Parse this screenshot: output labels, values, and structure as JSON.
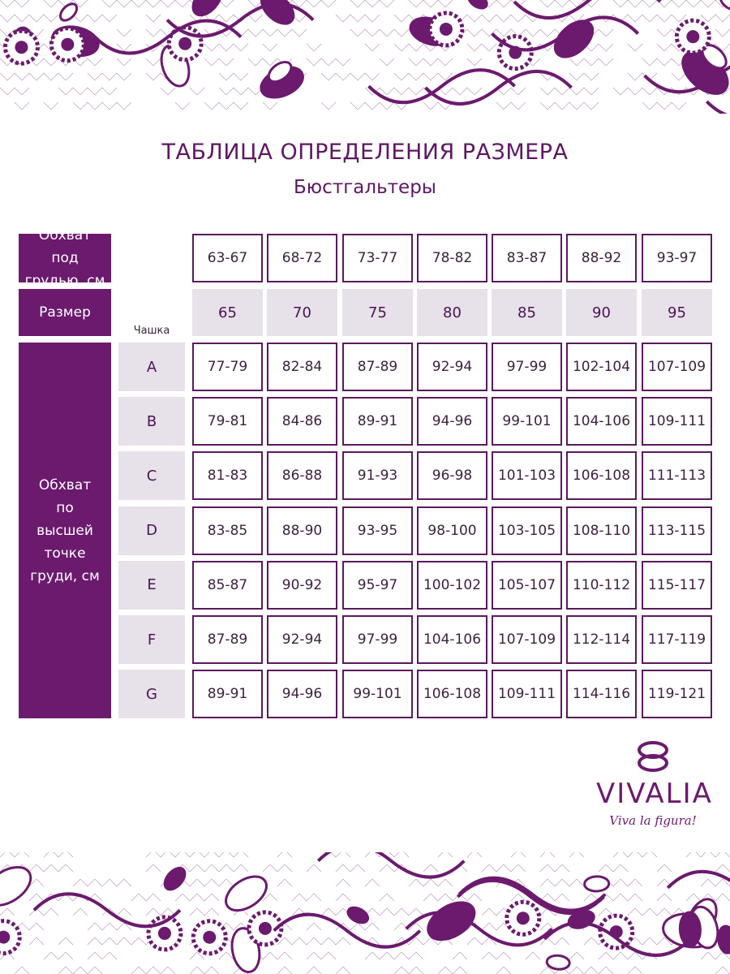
{
  "colors": {
    "brand": "#6b1a6e",
    "light": "#e7e1ea"
  },
  "title": "ТАБЛИЦА ОПРЕДЕЛЕНИЯ РАЗМЕРА",
  "subtitle": "Бюстгальтеры",
  "table": {
    "underbust_label": "Обхват под грудью, см",
    "size_label": "Размер",
    "cup_label": "Чашка",
    "bust_label": "Обхват по высшей точке груди, см",
    "underbust": [
      "63-67",
      "68-72",
      "73-77",
      "78-82",
      "83-87",
      "88-92",
      "93-97"
    ],
    "sizes": [
      "65",
      "70",
      "75",
      "80",
      "85",
      "90",
      "95"
    ],
    "rows": [
      {
        "cup": "A",
        "values": [
          "77-79",
          "82-84",
          "87-89",
          "92-94",
          "97-99",
          "102-104",
          "107-109"
        ]
      },
      {
        "cup": "B",
        "values": [
          "79-81",
          "84-86",
          "89-91",
          "94-96",
          "99-101",
          "104-106",
          "109-111"
        ]
      },
      {
        "cup": "C",
        "values": [
          "81-83",
          "86-88",
          "91-93",
          "96-98",
          "101-103",
          "106-108",
          "111-113"
        ]
      },
      {
        "cup": "D",
        "values": [
          "83-85",
          "88-90",
          "93-95",
          "98-100",
          "103-105",
          "108-110",
          "113-115"
        ]
      },
      {
        "cup": "E",
        "values": [
          "85-87",
          "90-92",
          "95-97",
          "100-102",
          "105-107",
          "110-112",
          "115-117"
        ]
      },
      {
        "cup": "F",
        "values": [
          "87-89",
          "92-94",
          "97-99",
          "104-106",
          "107-109",
          "112-114",
          "117-119"
        ]
      },
      {
        "cup": "G",
        "values": [
          "89-91",
          "94-96",
          "99-101",
          "106-108",
          "109-111",
          "114-116",
          "119-121"
        ]
      }
    ]
  },
  "logo": {
    "brand": "VIVALIA",
    "slogan": "Viva la figura!"
  }
}
